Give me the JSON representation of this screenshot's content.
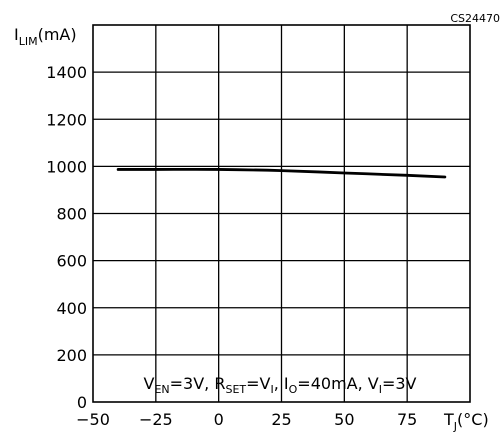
{
  "figure_code": "CS24470",
  "chart_data": {
    "type": "line",
    "y_axis_label": {
      "main": "I",
      "sub": "LIM",
      "unit": "(mA)"
    },
    "x_axis_label": {
      "main": "T",
      "sub": "J",
      "unit": "(°C)"
    },
    "xlim": [
      -50,
      100
    ],
    "ylim": [
      0,
      1600
    ],
    "x_ticks": [
      -50,
      -25,
      0,
      25,
      50,
      75
    ],
    "y_ticks": [
      0,
      200,
      400,
      600,
      800,
      1000,
      1200,
      1400
    ],
    "grid": true,
    "series": [
      {
        "x": [
          -40,
          -25,
          0,
          25,
          50,
          75,
          90
        ],
        "y": [
          987,
          987,
          987,
          982,
          972,
          962,
          955
        ]
      }
    ],
    "annotation": [
      {
        "main": "V",
        "sub": "EN",
        "rest": "=3V, "
      },
      {
        "main": "R",
        "sub": "SET",
        "rest": "=V"
      },
      {
        "main": "",
        "sub": "I",
        "rest": ",  "
      },
      {
        "main": "I",
        "sub": "O",
        "rest": "=40mA,  "
      },
      {
        "main": "V",
        "sub": "I",
        "rest": "=3V"
      }
    ]
  }
}
